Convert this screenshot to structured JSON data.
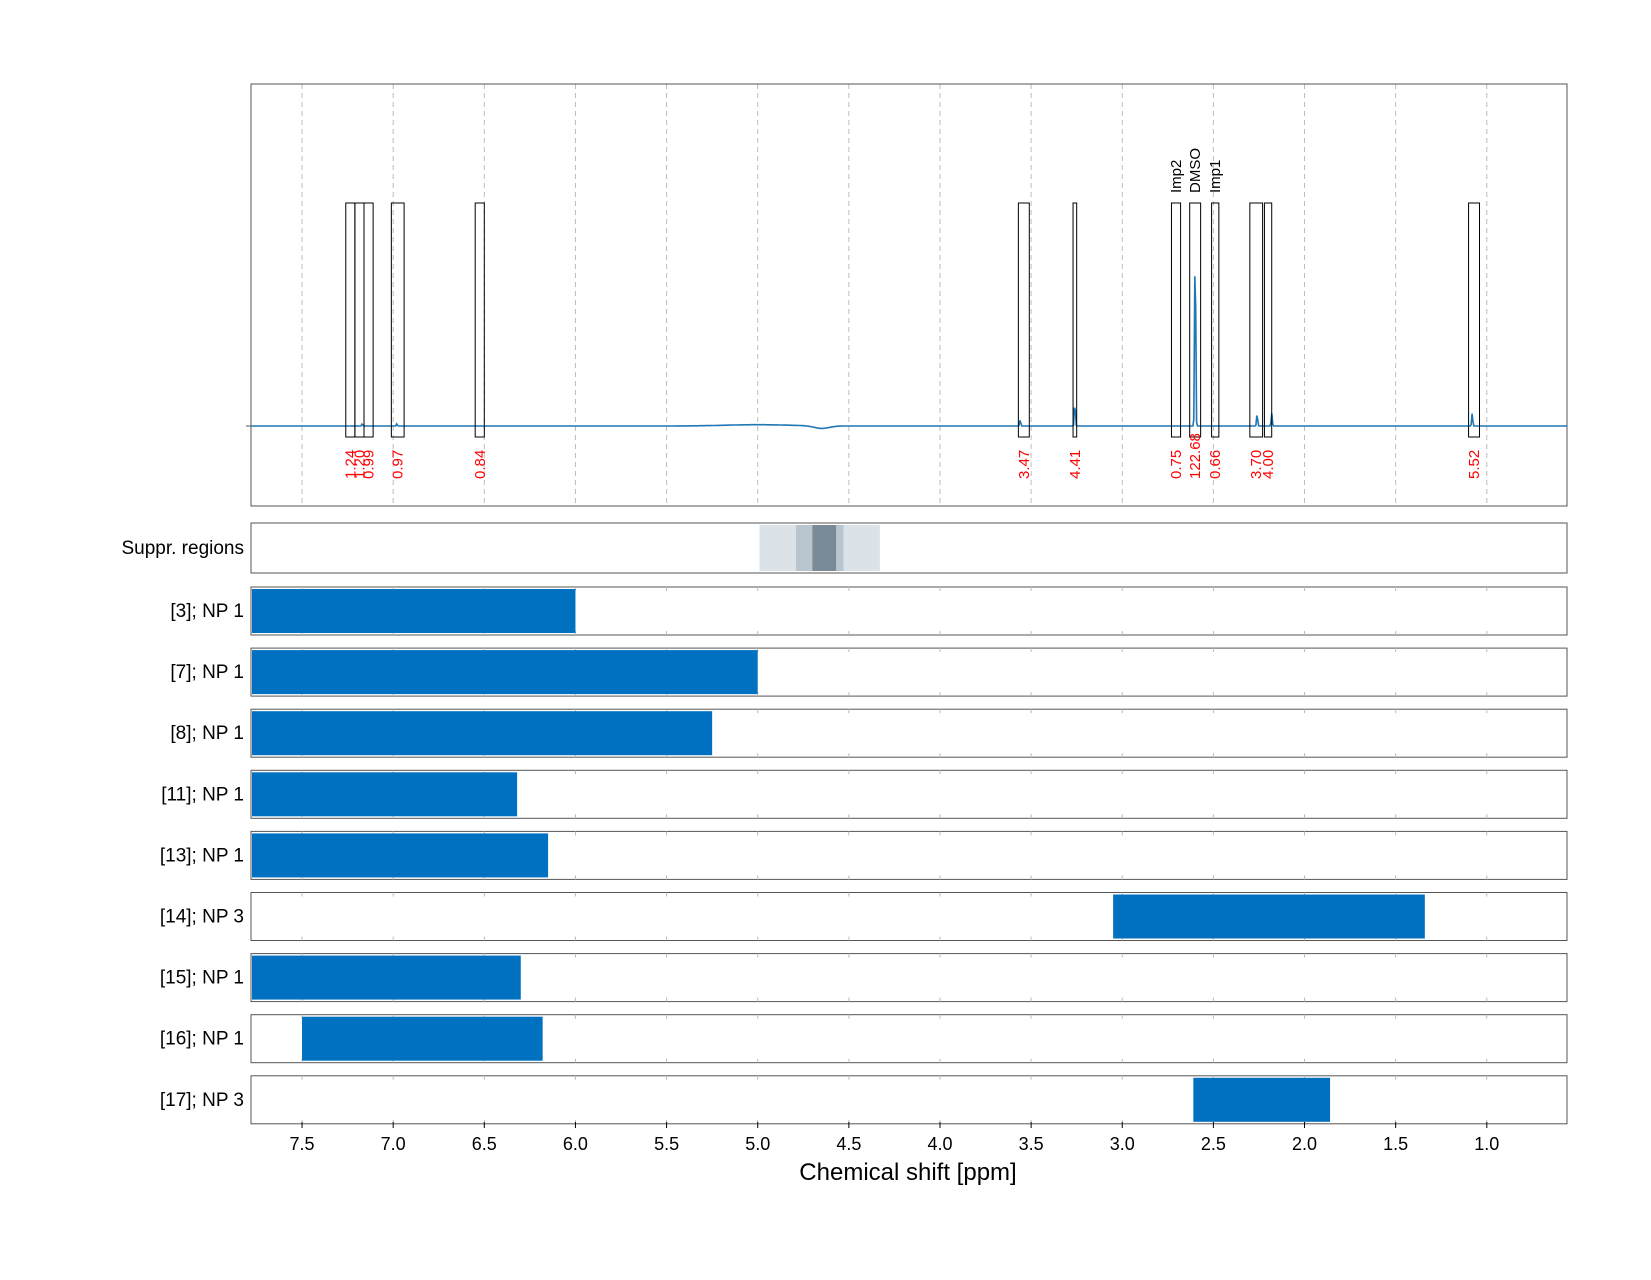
{
  "chart_data": {
    "type": "nmr-spectrum-with-ranges",
    "xlabel": "Chemical shift [ppm]",
    "x_axis": {
      "reversed": true,
      "xlim": [
        7.78,
        0.56
      ],
      "ticks": [
        7.5,
        7.0,
        6.5,
        6.0,
        5.5,
        5.0,
        4.5,
        4.0,
        3.5,
        3.0,
        2.5,
        2.0,
        1.5,
        1.0
      ],
      "tick_labels": [
        "7.5",
        "7.0",
        "6.5",
        "6.0",
        "5.5",
        "5.0",
        "4.5",
        "4.0",
        "3.5",
        "3.0",
        "2.5",
        "2.0",
        "1.5",
        "1.0"
      ]
    },
    "grid": true,
    "colors": {
      "spectrum": "#1f77b4",
      "bar": "#0070c0",
      "integral_label": "#ff0000",
      "supp_dark": "#7a8b97",
      "supp_mid": "#b9c5cf",
      "supp_light": "#dbe2e8"
    },
    "spectrum": {
      "peaks": [
        {
          "ppm": 3.56,
          "height": 0.03
        },
        {
          "ppm": 3.26,
          "height": 0.12
        },
        {
          "ppm": 2.6,
          "height": 0.95
        },
        {
          "ppm": 2.26,
          "height": 0.06
        },
        {
          "ppm": 2.18,
          "height": 0.06
        },
        {
          "ppm": 1.08,
          "height": 0.06
        },
        {
          "ppm": 7.17,
          "height": 0.01
        },
        {
          "ppm": 6.98,
          "height": 0.01
        }
      ]
    },
    "integration_regions": [
      {
        "from": 7.26,
        "to": 7.21,
        "integral": "1.24"
      },
      {
        "from": 7.21,
        "to": 7.16,
        "integral": "1.20"
      },
      {
        "from": 7.16,
        "to": 7.11,
        "integral": "0.99"
      },
      {
        "from": 7.01,
        "to": 6.94,
        "integral": "0.97"
      },
      {
        "from": 6.55,
        "to": 6.5,
        "integral": "0.84"
      },
      {
        "from": 3.57,
        "to": 3.51,
        "integral": "3.47"
      },
      {
        "from": 3.27,
        "to": 3.25,
        "integral": "4.41"
      },
      {
        "from": 2.73,
        "to": 2.68,
        "integral": "0.75",
        "label": "Imp2"
      },
      {
        "from": 2.63,
        "to": 2.57,
        "integral": "122.68",
        "label": "DMSO"
      },
      {
        "from": 2.51,
        "to": 2.47,
        "integral": "0.66",
        "label": "Imp1"
      },
      {
        "from": 2.3,
        "to": 2.23,
        "integral": "3.70"
      },
      {
        "from": 2.22,
        "to": 2.18,
        "integral": "4.00"
      },
      {
        "from": 1.1,
        "to": 1.04,
        "integral": "5.52"
      }
    ],
    "suppressed_regions": {
      "label": "Suppr. regions",
      "bands": [
        {
          "from": 4.99,
          "to": 4.33,
          "level": "light"
        },
        {
          "from": 4.79,
          "to": 4.53,
          "level": "mid"
        },
        {
          "from": 4.7,
          "to": 4.57,
          "level": "dark"
        }
      ]
    },
    "ranges": [
      {
        "label": "[3]; NP 1",
        "from": 7.78,
        "to": 6.0
      },
      {
        "label": "[7]; NP 1",
        "from": 7.78,
        "to": 5.0
      },
      {
        "label": "[8]; NP 1",
        "from": 7.78,
        "to": 5.25
      },
      {
        "label": "[11]; NP 1",
        "from": 7.78,
        "to": 6.32
      },
      {
        "label": "[13]; NP 1",
        "from": 7.78,
        "to": 6.15
      },
      {
        "label": "[14]; NP 3",
        "from": 3.05,
        "to": 1.34
      },
      {
        "label": "[15]; NP 1",
        "from": 7.78,
        "to": 6.3
      },
      {
        "label": "[16]; NP 1",
        "from": 7.5,
        "to": 6.18
      },
      {
        "label": "[17]; NP 3",
        "from": 2.61,
        "to": 1.86
      }
    ]
  }
}
